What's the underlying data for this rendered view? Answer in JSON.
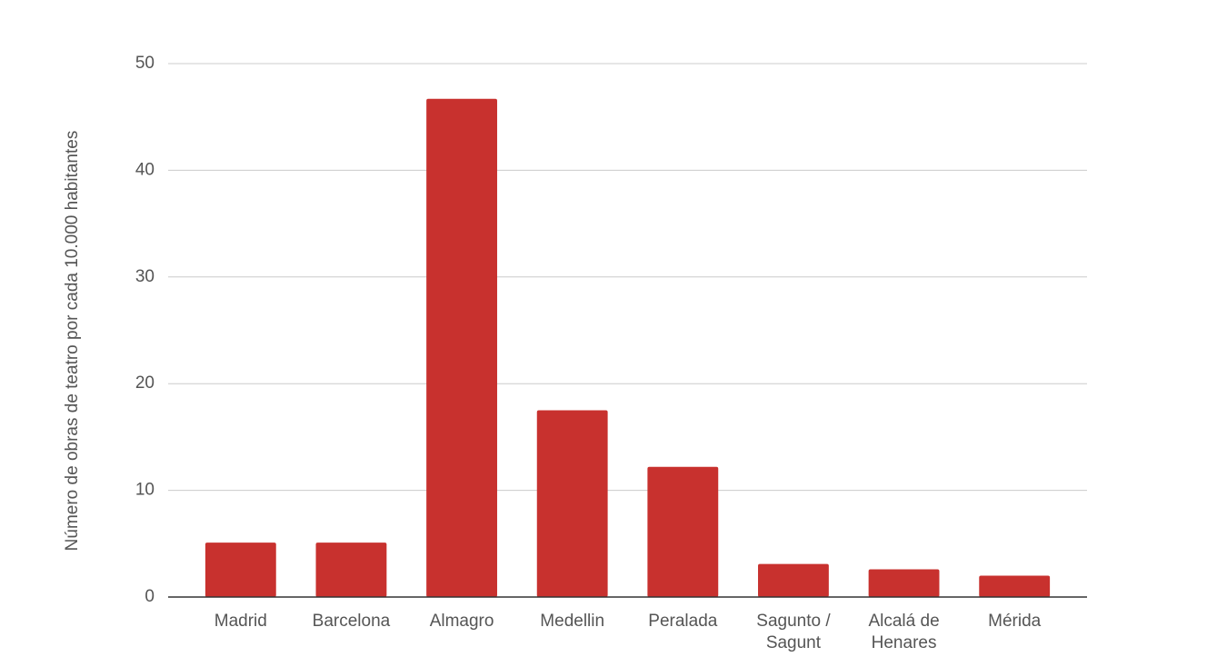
{
  "chart_data": {
    "type": "bar",
    "y_label": "Número de obras de teatro por cada 10.000 habitantes",
    "categories": [
      "Madrid",
      "Barcelona",
      "Almagro",
      "Medellin",
      "Peralada",
      "Sagunto / Sagunt",
      "Alcalá de Henares",
      "Mérida"
    ],
    "values": [
      5.1,
      5.1,
      46.7,
      17.5,
      12.2,
      3.1,
      2.6,
      2.0
    ],
    "color": "#c8312e",
    "ylim": [
      0,
      50
    ],
    "yticks": [
      0,
      10,
      20,
      30,
      40,
      50
    ],
    "grid": true
  }
}
